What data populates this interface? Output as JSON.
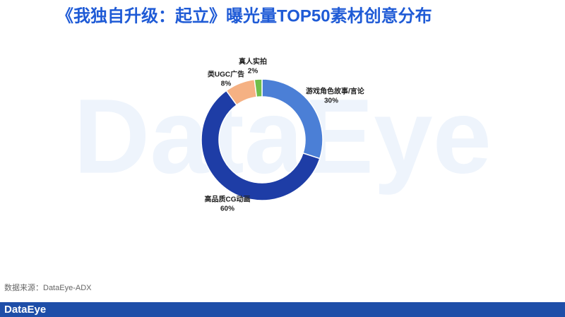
{
  "chart_data": {
    "type": "donut",
    "title": "《我独自升级：起立》曝光量TOP50素材创意分布",
    "categories": [
      "游戏角色故事/言论",
      "高品质CG动画",
      "类UGC广告",
      "真人实拍"
    ],
    "values": [
      30,
      60,
      8,
      2
    ],
    "value_labels": [
      "30%",
      "60%",
      "8%",
      "2%"
    ],
    "colors": [
      "#4b7fd6",
      "#1e3da6",
      "#f5b183",
      "#6fbf4a"
    ]
  },
  "watermark": "DataEye",
  "source": "数据来源：DataEye-ADX",
  "footer_logo": "DataEye"
}
